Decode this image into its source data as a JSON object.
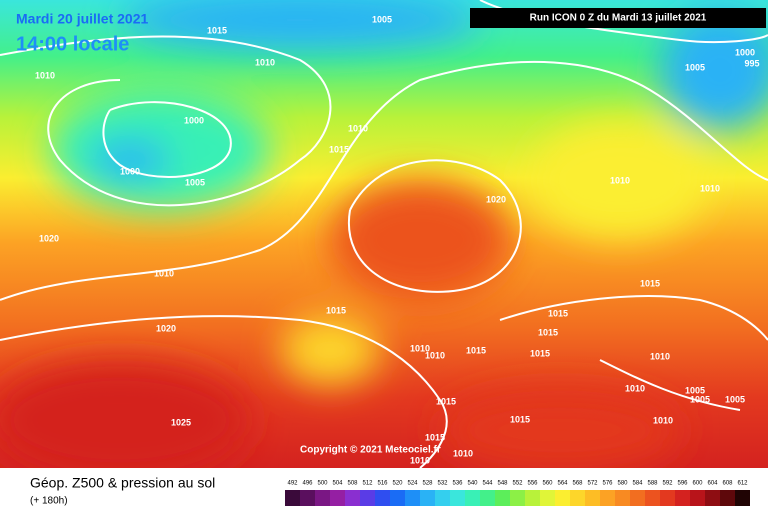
{
  "header": {
    "date": "Mardi 20 juillet 2021",
    "time": "14:00 locale",
    "run": "Run ICON 0 Z du Mardi 13 juillet 2021"
  },
  "copyright": "Copyright © 2021 Meteociel.fr",
  "footer": {
    "title": "Géop. Z500 & pression au sol",
    "subtitle": "(+ 180h)"
  },
  "legend": {
    "values": [
      492,
      496,
      500,
      504,
      508,
      512,
      516,
      520,
      524,
      528,
      532,
      536,
      540,
      544,
      548,
      552,
      556,
      560,
      564,
      568,
      572,
      576,
      580,
      584,
      588,
      592,
      596,
      600,
      604,
      608,
      612
    ],
    "colors": [
      "#3a0a3a",
      "#5a0f5e",
      "#7a1784",
      "#951fa3",
      "#8a2fd0",
      "#5a3ce6",
      "#2f4ef0",
      "#1a6cf5",
      "#1e8ff7",
      "#2ab2f5",
      "#34cfee",
      "#3ae6dc",
      "#39f0b6",
      "#43f08a",
      "#5cee5a",
      "#8cf046",
      "#b8f23a",
      "#e0f538",
      "#fbee30",
      "#fdd62a",
      "#fdbd25",
      "#fca224",
      "#f88a22",
      "#f26e20",
      "#ec531f",
      "#e3391f",
      "#d4221f",
      "#b8141a",
      "#8e0d12",
      "#5e080b",
      "#200404"
    ]
  },
  "isobars": [
    1005,
    1015,
    1010,
    1010,
    1000,
    1000,
    1005,
    1010,
    1015,
    1020,
    1010,
    1020,
    1025,
    1015,
    1020,
    1010,
    1010,
    1005,
    1000,
    995,
    1015,
    1015,
    1015,
    1015,
    1015,
    1010,
    1010,
    1010,
    1010,
    1005,
    1005,
    1005,
    1010,
    1015,
    1015,
    1015,
    1010,
    1010
  ]
}
